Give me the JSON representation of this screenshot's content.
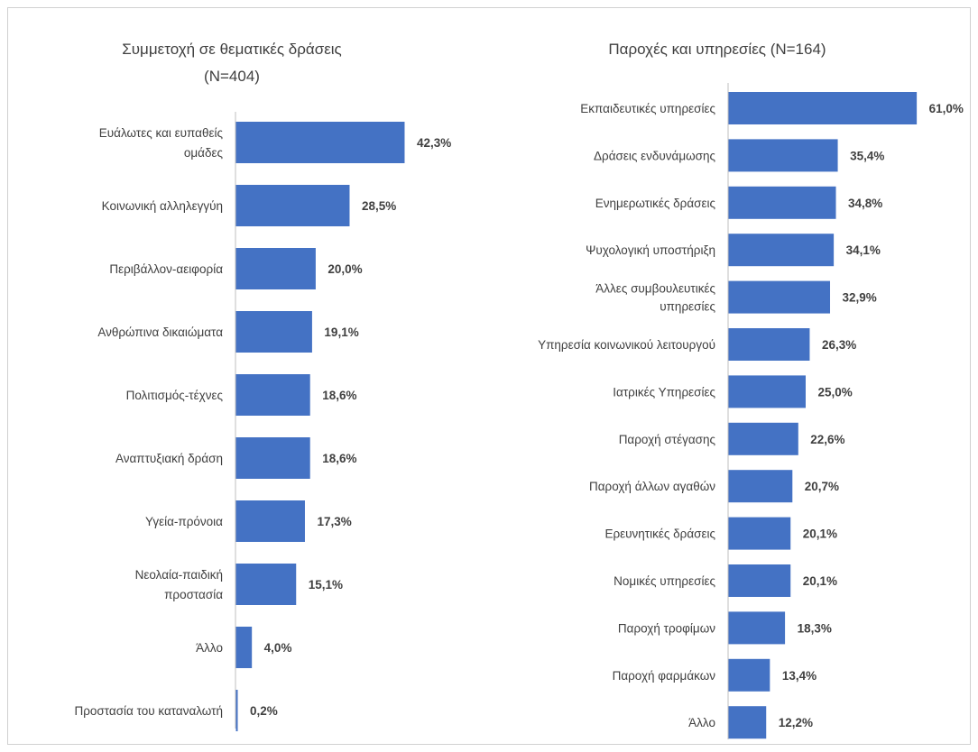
{
  "chart_data": [
    {
      "type": "bar",
      "orientation": "horizontal",
      "title": [
        "Συμμετοχή σε θεματικές δράσεις",
        "(N=404)"
      ],
      "unit": "%",
      "categories": [
        "Ευάλωτες και ευπαθείς ομάδες",
        "Κοινωνική αλληλεγγύη",
        "Περιβάλλον-αειφορία",
        "Ανθρώπινα δικαιώματα",
        "Πολιτισμός-τέχνες",
        "Αναπτυξιακή δράση",
        "Υγεία-πρόνοια",
        "Νεολαία-παιδική προστασία",
        "Άλλο",
        "Προστασία του καταναλωτή"
      ],
      "category_lines": [
        [
          "Ευάλωτες και ευπαθείς",
          "ομάδες"
        ],
        [
          "Κοινωνική αλληλεγγύη"
        ],
        [
          "Περιβάλλον-αειφορία"
        ],
        [
          "Ανθρώπινα δικαιώματα"
        ],
        [
          "Πολιτισμός-τέχνες"
        ],
        [
          "Αναπτυξιακή δράση"
        ],
        [
          "Υγεία-πρόνοια"
        ],
        [
          "Νεολαία-παιδική",
          "προστασία"
        ],
        [
          "Άλλο"
        ],
        [
          "Προστασία του καταναλωτή"
        ]
      ],
      "values": [
        42.3,
        28.5,
        20.0,
        19.1,
        18.6,
        18.6,
        17.3,
        15.1,
        4.0,
        0.2
      ],
      "data_labels": [
        "42,3%",
        "28,5%",
        "20,0%",
        "19,1%",
        "18,6%",
        "18,6%",
        "17,3%",
        "15,1%",
        "4,0%",
        "0,2%"
      ],
      "bar_color": "#4472c4",
      "grid": false,
      "legend": "none"
    },
    {
      "type": "bar",
      "orientation": "horizontal",
      "title": [
        "Παροχές και υπηρεσίες (N=164)"
      ],
      "unit": "%",
      "categories": [
        "Εκπαιδευτικές υπηρεσίες",
        "Δράσεις ενδυνάμωσης",
        "Ενημερωτικές δράσεις",
        "Ψυχολογική υποστήριξη",
        "Άλλες συμβουλευτικές υπηρεσίες",
        "Υπηρεσία κοινωνικού λειτουργού",
        "Ιατρικές Υπηρεσίες",
        "Παροχή στέγασης",
        "Παροχή άλλων αγαθών",
        "Ερευνητικές δράσεις",
        "Νομικές υπηρεσίες",
        "Παροχή τροφίμων",
        "Παροχή φαρμάκων",
        "Άλλο"
      ],
      "category_lines": [
        [
          "Εκπαιδευτικές υπηρεσίες"
        ],
        [
          "Δράσεις ενδυνάμωσης"
        ],
        [
          "Ενημερωτικές δράσεις"
        ],
        [
          "Ψυχολογική υποστήριξη"
        ],
        [
          "Άλλες συμβουλευτικές",
          "υπηρεσίες"
        ],
        [
          "Υπηρεσία κοινωνικού λειτουργού"
        ],
        [
          "Ιατρικές Υπηρεσίες"
        ],
        [
          "Παροχή στέγασης"
        ],
        [
          "Παροχή άλλων αγαθών"
        ],
        [
          "Ερευνητικές δράσεις"
        ],
        [
          "Νομικές υπηρεσίες"
        ],
        [
          "Παροχή τροφίμων"
        ],
        [
          "Παροχή φαρμάκων"
        ],
        [
          "Άλλο"
        ]
      ],
      "values": [
        61.0,
        35.4,
        34.8,
        34.1,
        32.9,
        26.3,
        25.0,
        22.6,
        20.7,
        20.1,
        20.1,
        18.3,
        13.4,
        12.2
      ],
      "data_labels": [
        "61,0%",
        "35,4%",
        "34,8%",
        "34,1%",
        "32,9%",
        "26,3%",
        "25,0%",
        "22,6%",
        "20,7%",
        "20,1%",
        "20,1%",
        "18,3%",
        "13,4%",
        "12,2%"
      ],
      "bar_color": "#4472c4",
      "grid": false,
      "legend": "none"
    }
  ]
}
